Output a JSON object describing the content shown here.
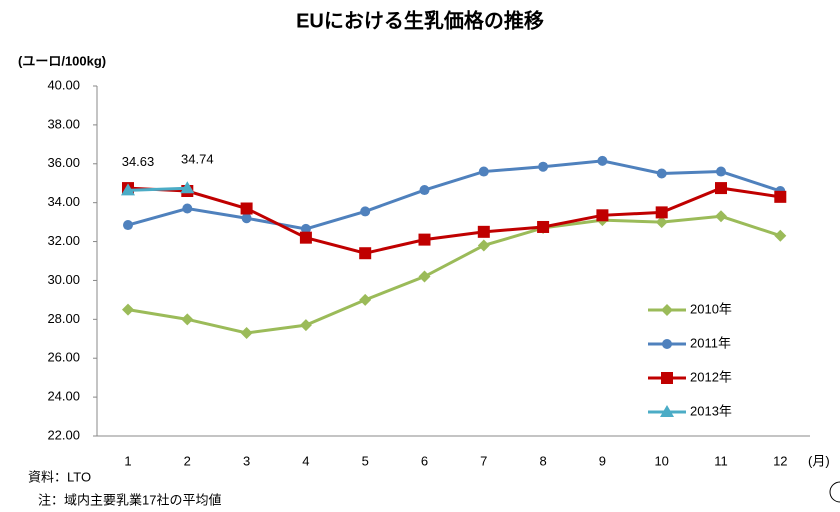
{
  "chart_data": {
    "type": "line",
    "title": "EUにおける生乳価格の推移",
    "y_label": "(ユーロ/100kg)",
    "x_label": "(月)",
    "notes": [
      "資料：LTO",
      "注：域内主要乳業17社の平均値"
    ],
    "categories": [
      "1",
      "2",
      "3",
      "4",
      "5",
      "6",
      "7",
      "8",
      "9",
      "10",
      "11",
      "12"
    ],
    "series": [
      {
        "name": "2010年",
        "color": "#9bbb59",
        "marker": "diamond",
        "values": [
          28.5,
          28.0,
          27.3,
          27.7,
          29.0,
          30.2,
          31.8,
          32.7,
          33.1,
          33.0,
          33.3,
          32.3
        ]
      },
      {
        "name": "2011年",
        "color": "#4f81bd",
        "marker": "circle",
        "values": [
          32.85,
          33.7,
          33.2,
          32.65,
          33.55,
          34.65,
          35.6,
          35.85,
          36.15,
          35.5,
          35.6,
          34.6
        ]
      },
      {
        "name": "2012年",
        "color": "#c00000",
        "marker": "square",
        "values": [
          34.75,
          34.6,
          33.7,
          32.2,
          31.4,
          32.1,
          32.5,
          32.75,
          33.35,
          33.5,
          34.75,
          34.3
        ]
      },
      {
        "name": "2013年",
        "color": "#4bacc6",
        "marker": "triangle",
        "data_labels": true,
        "values": [
          34.63,
          34.74,
          null,
          null,
          null,
          null,
          null,
          null,
          null,
          null,
          null,
          null
        ]
      }
    ],
    "ylim": [
      22,
      40
    ],
    "yticks": [
      {
        "value": 22,
        "label": "22.00"
      },
      {
        "value": 24,
        "label": "24.00"
      },
      {
        "value": 26,
        "label": "26.00"
      },
      {
        "value": 28,
        "label": "28.00"
      },
      {
        "value": 30,
        "label": "30.00"
      },
      {
        "value": 32,
        "label": "32.00"
      },
      {
        "value": 34,
        "label": "34.00"
      },
      {
        "value": 36,
        "label": "36.00"
      },
      {
        "value": 38,
        "label": "38.00"
      },
      {
        "value": 40,
        "label": "40.00"
      }
    ],
    "grid": false,
    "legend": "right"
  }
}
